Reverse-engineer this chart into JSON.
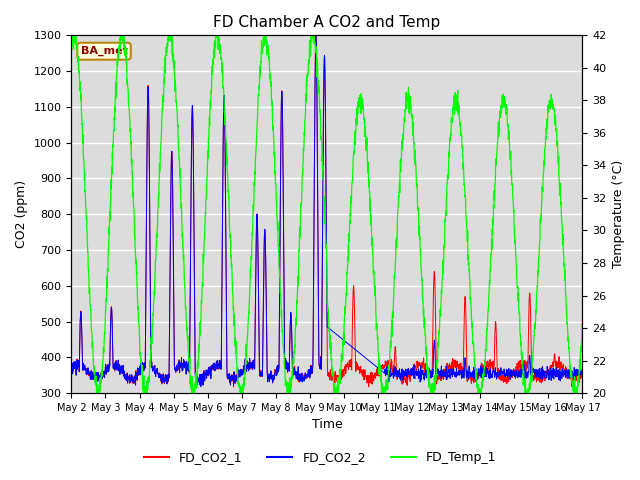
{
  "title": "FD Chamber A CO2 and Temp",
  "xlabel": "Time",
  "ylabel_left": "CO2 (ppm)",
  "ylabel_right": "Temperature (°C)",
  "ylim_left": [
    300,
    1300
  ],
  "ylim_right": [
    20,
    42
  ],
  "plot_bg_color": "#dcdcdc",
  "legend_label": "BA_met",
  "xtick_labels": [
    "May 2",
    "May 3",
    "May 4",
    "May 5",
    "May 6",
    "May 7",
    "May 8",
    "May 9",
    "May 10",
    "May 11",
    "May 12",
    "May 13",
    "May 14",
    "May 15",
    "May 16",
    "May 17"
  ],
  "line_colors": {
    "CO2_1": "red",
    "CO2_2": "blue",
    "Temp": "#00ff00"
  },
  "legend_entries": [
    "FD_CO2_1",
    "FD_CO2_2",
    "FD_Temp_1"
  ],
  "co2_yticks": [
    300,
    400,
    500,
    600,
    700,
    800,
    900,
    1000,
    1100,
    1200,
    1300
  ],
  "temp_yticks": [
    20,
    22,
    24,
    26,
    28,
    30,
    32,
    34,
    36,
    38,
    40,
    42
  ]
}
